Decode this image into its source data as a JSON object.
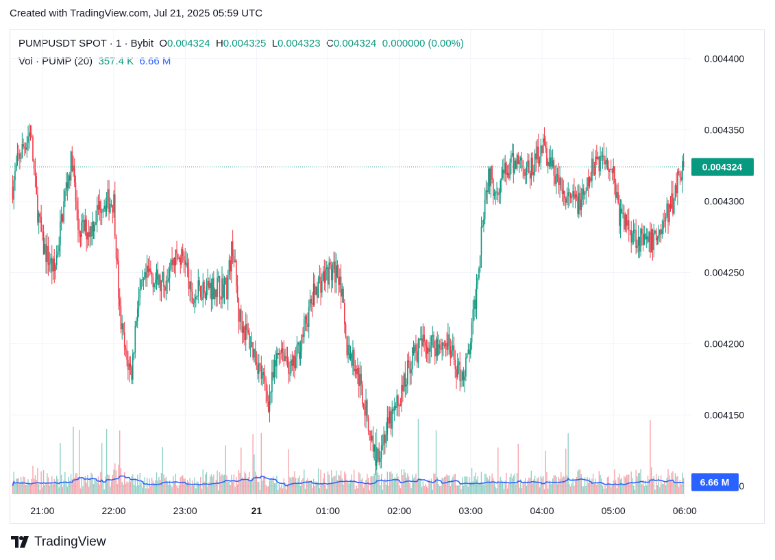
{
  "header": {
    "created_text": "Created with TradingView.com, Jul 21, 2025 05:59 UTC"
  },
  "legend": {
    "symbol": "PUMPUSDT SPOT · 1 · Bybit",
    "o_label": "O",
    "o_value": "0.004324",
    "h_label": "H",
    "h_value": "0.004325",
    "l_label": "L",
    "l_value": "0.004323",
    "c_label": "C",
    "c_value": "0.004324",
    "change": "0.000000 (0.00%)",
    "vol_label": "Vol · PUMP (20)",
    "vol_value": "357.4 K",
    "vol_ma_value": "6.66 M"
  },
  "price_axis": {
    "ticks": [
      "0.004400",
      "0.004350",
      "0.004300",
      "0.004250",
      "0.004200",
      "0.004150",
      "0.004100"
    ],
    "current_price_label": "0.004324",
    "volume_ma_label": "6.66 M"
  },
  "time_axis": {
    "ticks": [
      "21:00",
      "22:00",
      "23:00",
      "21",
      "01:00",
      "02:00",
      "03:00",
      "04:00",
      "05:00",
      "06:00"
    ]
  },
  "footer": {
    "brand": "TradingView"
  },
  "colors": {
    "up": "#089981",
    "down": "#f23645",
    "ma": "#2962ff",
    "grid": "#f0f3fa",
    "axis_text": "#131722"
  },
  "chart_data": {
    "type": "candlestick",
    "symbol": "PUMPUSDT SPOT",
    "interval": "1",
    "exchange": "Bybit",
    "ylim": [
      0.00409,
      0.00442
    ],
    "price_ticks": [
      0.0044,
      0.00435,
      0.0043,
      0.00425,
      0.0042,
      0.00415,
      0.0041
    ],
    "x_ticks": [
      "21:00",
      "22:00",
      "23:00",
      "21",
      "01:00",
      "02:00",
      "03:00",
      "04:00",
      "05:00",
      "06:00"
    ],
    "last_price": 0.004324,
    "volume_ma_length": 20,
    "volume_ma_last": "6.66 M",
    "price_path": [
      [
        "20:35",
        0.00431
      ],
      [
        "20:40",
        0.00433
      ],
      [
        "20:45",
        0.00434
      ],
      [
        "20:50",
        0.00435
      ],
      [
        "20:55",
        0.0043
      ],
      [
        "21:00",
        0.00427
      ],
      [
        "21:05",
        0.00426
      ],
      [
        "21:10",
        0.00425
      ],
      [
        "21:15",
        0.00428
      ],
      [
        "21:20",
        0.00431
      ],
      [
        "21:25",
        0.00433
      ],
      [
        "21:30",
        0.00428
      ],
      [
        "21:40",
        0.00428
      ],
      [
        "21:50",
        0.0043
      ],
      [
        "22:00",
        0.0043
      ],
      [
        "22:05",
        0.00422
      ],
      [
        "22:10",
        0.00419
      ],
      [
        "22:15",
        0.00418
      ],
      [
        "22:20",
        0.00423
      ],
      [
        "22:30",
        0.00425
      ],
      [
        "22:40",
        0.00424
      ],
      [
        "22:50",
        0.00426
      ],
      [
        "23:00",
        0.00426
      ],
      [
        "23:05",
        0.00423
      ],
      [
        "23:15",
        0.00424
      ],
      [
        "23:25",
        0.00424
      ],
      [
        "23:35",
        0.00424
      ],
      [
        "23:40",
        0.00427
      ],
      [
        "23:45",
        0.00422
      ],
      [
        "23:50",
        0.00421
      ],
      [
        "00:00",
        0.00419
      ],
      [
        "00:10",
        0.00416
      ],
      [
        "00:20",
        0.0042
      ],
      [
        "00:30",
        0.00418
      ],
      [
        "00:40",
        0.00421
      ],
      [
        "00:50",
        0.00424
      ],
      [
        "01:00",
        0.00425
      ],
      [
        "01:10",
        0.00425
      ],
      [
        "01:15",
        0.0042
      ],
      [
        "01:25",
        0.00418
      ],
      [
        "01:35",
        0.00414
      ],
      [
        "01:40",
        0.00412
      ],
      [
        "01:45",
        0.00413
      ],
      [
        "01:50",
        0.00414
      ],
      [
        "02:00",
        0.00416
      ],
      [
        "02:10",
        0.00419
      ],
      [
        "02:20",
        0.0042
      ],
      [
        "02:30",
        0.0042
      ],
      [
        "02:35",
        0.0042
      ],
      [
        "02:40",
        0.0042
      ],
      [
        "02:50",
        0.00418
      ],
      [
        "02:55",
        0.00418
      ],
      [
        "03:00",
        0.0042
      ],
      [
        "03:05",
        0.00424
      ],
      [
        "03:10",
        0.00429
      ],
      [
        "03:15",
        0.00432
      ],
      [
        "03:20",
        0.00431
      ],
      [
        "03:30",
        0.00432
      ],
      [
        "03:40",
        0.00433
      ],
      [
        "03:50",
        0.00432
      ],
      [
        "04:00",
        0.00434
      ],
      [
        "04:10",
        0.00432
      ],
      [
        "04:20",
        0.0043
      ],
      [
        "04:25",
        0.0043
      ],
      [
        "04:35",
        0.0043
      ],
      [
        "04:45",
        0.00433
      ],
      [
        "04:55",
        0.00433
      ],
      [
        "05:00",
        0.00432
      ],
      [
        "05:05",
        0.00429
      ],
      [
        "05:15",
        0.00428
      ],
      [
        "05:25",
        0.00427
      ],
      [
        "05:30",
        0.00427
      ],
      [
        "05:40",
        0.00428
      ],
      [
        "05:45",
        0.00429
      ],
      [
        "05:50",
        0.0043
      ],
      [
        "05:55",
        0.00432
      ],
      [
        "05:59",
        0.004324
      ]
    ]
  }
}
